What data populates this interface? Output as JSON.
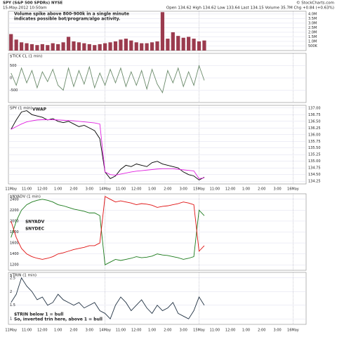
{
  "header": {
    "symbol": "SPY (S&P 500 SPDRs) NYSE",
    "date": "15-May-2012 10:50am",
    "quote": "Open 134.62  High 134.62  Low 133.64  Last 134.15  Volume 35.7M  Chg +0.84 (+0.63%)",
    "source": "© StockCharts.com"
  },
  "x_axis": {
    "categories": [
      "11May",
      null,
      null,
      "11:00",
      null,
      null,
      "12:00",
      null,
      null,
      "1:00",
      null,
      null,
      "2:00",
      null,
      null,
      "3:00",
      null,
      null,
      "14May",
      null,
      null,
      "11:00",
      null,
      null,
      "12:00",
      null,
      null,
      "1:00",
      null,
      null,
      "2:00",
      null,
      null,
      "3:00",
      null,
      null,
      "15May",
      null,
      null,
      "11:00",
      null,
      null,
      "12:00",
      null,
      null,
      "1:00",
      null,
      null,
      "2:00",
      null,
      null,
      "3:00",
      null,
      null,
      "16May",
      null,
      null
    ]
  },
  "chart_data": [
    {
      "type": "bar",
      "annotation": [
        "Volume spike above 800-900k in a single minute",
        "indicates possible bot/program/algo activity."
      ],
      "axis_side": "right",
      "grid": true,
      "ylim": [
        0,
        4300000
      ],
      "yticks": [
        {
          "value": 500000,
          "label": "500K"
        },
        {
          "value": 1000000,
          "label": "1.0M"
        },
        {
          "value": 1500000,
          "label": "1.5M"
        },
        {
          "value": 2000000,
          "label": "2.0M"
        },
        {
          "value": 2500000,
          "label": "2.5M"
        },
        {
          "value": 3000000,
          "label": "3.0M"
        },
        {
          "value": 3500000,
          "label": "3.5M"
        },
        {
          "value": 4000000,
          "label": "4.0M"
        }
      ],
      "series": [
        {
          "color": "#9b3b4e",
          "values": [
            1800000,
            1200000,
            900000,
            800000,
            700000,
            600000,
            700000,
            600000,
            800000,
            700000,
            900000,
            1500000,
            1000000,
            900000,
            800000,
            700000,
            600000,
            700000,
            800000,
            900000,
            1000000,
            1200000,
            1300000,
            1100000,
            900000,
            800000,
            800000,
            900000,
            1000000,
            4200000,
            1300000,
            2000000,
            1600000,
            1400000,
            1500000,
            1300000,
            1000000,
            1100000,
            null,
            null,
            null,
            null,
            null,
            null,
            null,
            null,
            null,
            null,
            null,
            null,
            null,
            null,
            null,
            null,
            null,
            null,
            null
          ]
        }
      ]
    },
    {
      "type": "line",
      "title": "$TICK CL (1 min)",
      "axis_side": "left",
      "grid": true,
      "ylim": [
        -1000,
        1000
      ],
      "yticks": [
        -500,
        0,
        500
      ],
      "series": [
        {
          "color": "#6a8a6a",
          "values": [
            200,
            -300,
            400,
            -200,
            300,
            -400,
            250,
            -150,
            350,
            -300,
            -500,
            400,
            -350,
            300,
            -250,
            450,
            -400,
            200,
            -300,
            350,
            -200,
            400,
            -350,
            250,
            -300,
            300,
            -450,
            350,
            -250,
            -600,
            300,
            -200,
            400,
            -350,
            250,
            -300,
            500,
            -100,
            null,
            null,
            null,
            null,
            null,
            null,
            null,
            null,
            null,
            null,
            null,
            null,
            null,
            null,
            null,
            null,
            null,
            null,
            null
          ]
        }
      ]
    },
    {
      "type": "line",
      "title": "SPY (1 min)",
      "axis_side": "right",
      "grid": true,
      "ylim": [
        134.15,
        137.1
      ],
      "yticks": [
        134.25,
        {
          "value": 134.5,
          "label": "134.50"
        },
        134.75,
        {
          "value": 135,
          "label": "135.00"
        },
        135.25,
        {
          "value": 135.5,
          "label": "135.50"
        },
        135.75,
        {
          "value": 136,
          "label": "136.00"
        },
        136.25,
        {
          "value": 136.5,
          "label": "136.50"
        },
        136.75,
        {
          "value": 137,
          "label": "137.00"
        }
      ],
      "series": [
        {
          "color": "#000000",
          "values": [
            136.2,
            136.55,
            136.85,
            136.9,
            136.75,
            136.7,
            136.65,
            136.55,
            136.6,
            136.5,
            136.45,
            136.5,
            136.4,
            136.3,
            136.35,
            136.25,
            136.15,
            135.85,
            134.6,
            134.35,
            134.45,
            134.7,
            134.85,
            134.8,
            134.9,
            134.85,
            134.8,
            134.95,
            135,
            134.9,
            134.85,
            134.8,
            134.75,
            134.6,
            134.5,
            134.45,
            134.3,
            134.4,
            null,
            null,
            null,
            null,
            null,
            null,
            null,
            null,
            null,
            null,
            null,
            null,
            null,
            null,
            null,
            null,
            null,
            null,
            null
          ]
        },
        {
          "name": "VWAP",
          "color": "#e020e0",
          "values": [
            136.2,
            136.3,
            136.4,
            136.48,
            136.52,
            136.55,
            136.56,
            136.56,
            136.56,
            136.55,
            136.54,
            136.53,
            136.52,
            136.5,
            136.48,
            136.46,
            136.44,
            136.4,
            134.6,
            134.5,
            134.48,
            134.52,
            134.56,
            134.6,
            134.63,
            134.65,
            134.67,
            134.69,
            134.71,
            134.72,
            134.72,
            134.72,
            134.7,
            134.68,
            134.66,
            134.64,
            134.35,
            134.38,
            null,
            null,
            null,
            null,
            null,
            null,
            null,
            null,
            null,
            null,
            null,
            null,
            null,
            null,
            null,
            null,
            null,
            null,
            null
          ]
        }
      ]
    },
    {
      "type": "line",
      "title": "$NYADV (1 min)",
      "axis_side": "left",
      "grid": true,
      "ylim": [
        1100,
        2500
      ],
      "yticks": [
        1200,
        1400,
        1600,
        1800,
        2000,
        2200,
        2400
      ],
      "series": [
        {
          "name": "$NYADV",
          "color": "#1a7a1a",
          "values": [
            1700,
            2000,
            2200,
            2300,
            2350,
            2380,
            2400,
            2380,
            2350,
            2300,
            2280,
            2250,
            2220,
            2200,
            2180,
            2150,
            2150,
            2100,
            1200,
            1250,
            1300,
            1280,
            1300,
            1320,
            1350,
            1330,
            1340,
            1360,
            1400,
            1380,
            1370,
            1350,
            1330,
            1300,
            1320,
            1350,
            2200,
            2100,
            null,
            null,
            null,
            null,
            null,
            null,
            null,
            null,
            null,
            null,
            null,
            null,
            null,
            null,
            null,
            null,
            null,
            null,
            null
          ]
        },
        {
          "name": "$NYDEC",
          "color": "#e01010",
          "values": [
            2000,
            1700,
            1500,
            1400,
            1350,
            1320,
            1300,
            1320,
            1350,
            1400,
            1420,
            1450,
            1480,
            1500,
            1520,
            1550,
            1550,
            1600,
            2450,
            2400,
            2350,
            2370,
            2350,
            2330,
            2300,
            2320,
            2310,
            2290,
            2250,
            2270,
            2280,
            2300,
            2320,
            2350,
            2330,
            2300,
            1450,
            1550,
            null,
            null,
            null,
            null,
            null,
            null,
            null,
            null,
            null,
            null,
            null,
            null,
            null,
            null,
            null,
            null,
            null,
            null,
            null
          ]
        }
      ]
    },
    {
      "type": "line",
      "title": "$TRIN (1 min)",
      "annotation": [
        "$TRIN below 1 = bull",
        "So, inverted trin here, above 1 = bull"
      ],
      "axis_side": "left",
      "grid": true,
      "ylim": [
        0.8,
        2.7
      ],
      "yticks": [
        1,
        1.5,
        2,
        2.5
      ],
      "series": [
        {
          "color": "#223344",
          "values": [
            1.6,
            1.9,
            2.5,
            2.2,
            2,
            1.7,
            1.8,
            1.5,
            1.6,
            1.9,
            1.7,
            1.6,
            1.5,
            1.6,
            1.4,
            1.5,
            1.6,
            1.3,
            1.2,
            1,
            1.5,
            1.8,
            1.6,
            1.3,
            1.5,
            1.7,
            1.4,
            1.2,
            1.5,
            1.3,
            1.4,
            1.6,
            1.2,
            1.1,
            1,
            1.3,
            1.8,
            1.5,
            null,
            null,
            null,
            null,
            null,
            null,
            null,
            null,
            null,
            null,
            null,
            null,
            null,
            null,
            null,
            null,
            null,
            null,
            null
          ]
        }
      ]
    }
  ]
}
